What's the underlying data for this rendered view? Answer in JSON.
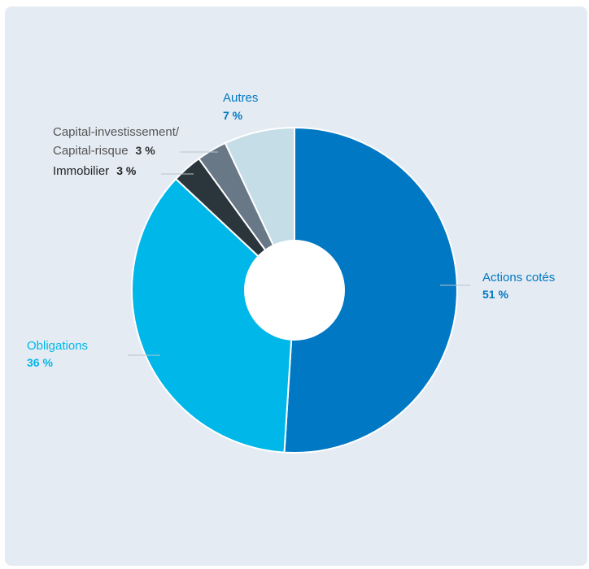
{
  "chart_data": {
    "type": "pie",
    "donut": true,
    "slices": [
      {
        "label": "Actions cotés",
        "value": 51,
        "value_label": "51 %",
        "color": "#0078c4"
      },
      {
        "label": "Obligations",
        "value": 36,
        "value_label": "36 %",
        "color": "#00b7ea"
      },
      {
        "label": "Immobilier",
        "value": 3,
        "value_label": "3 %",
        "color": "#2a363c"
      },
      {
        "label_lines": [
          "Capital-investissement/",
          "Capital-risque"
        ],
        "value": 3,
        "value_label": "3 %",
        "color": "#687887"
      },
      {
        "label": "Autres",
        "value": 7,
        "value_label": "7 %",
        "color": "#c5dde7"
      }
    ],
    "label_colors": {
      "actions": "#0078c4",
      "obligations": "#00b7ea",
      "immobilier": "#222222",
      "capital": "#555555",
      "autres": "#0078c4"
    }
  }
}
